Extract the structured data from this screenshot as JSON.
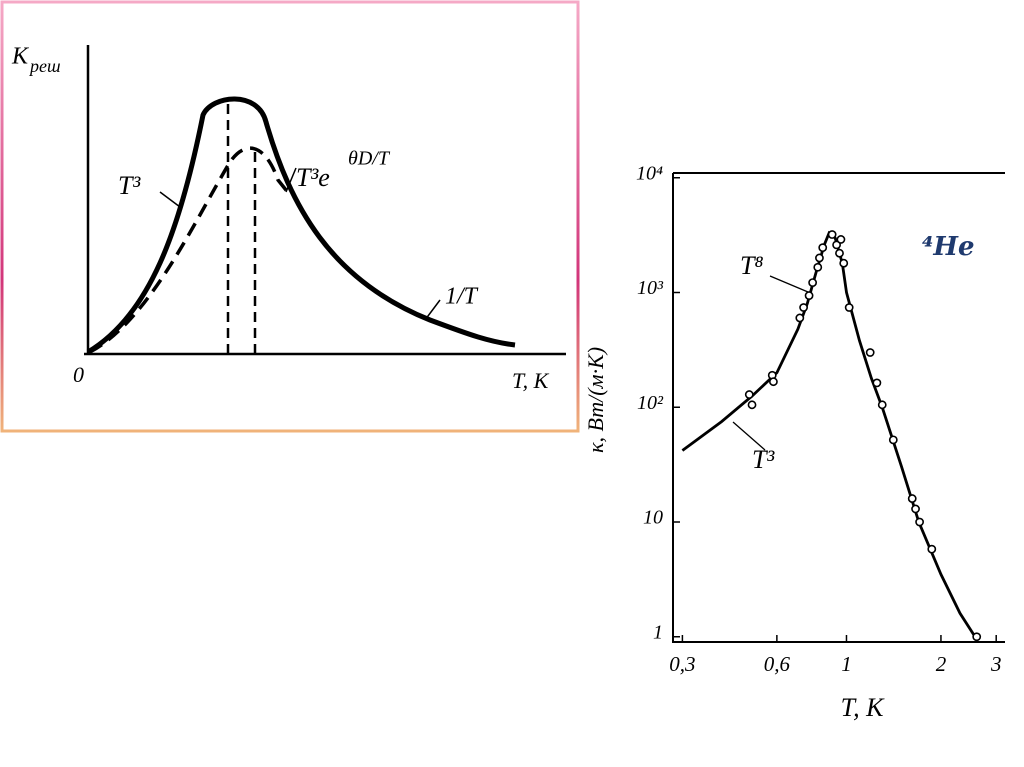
{
  "schematic": {
    "y_label": "K",
    "y_label_sub": "реш",
    "x_label": "T, K",
    "origin": "0",
    "label_rise": "T³",
    "label_peak_base": "T³e",
    "label_peak_exp": "θD/T",
    "label_fall": "1/T"
  },
  "chart_data": {
    "type": "line",
    "x_label": "T, K",
    "y_label": "κ, Вт/(м·К)",
    "xlog": true,
    "ylog": true,
    "xlim": [
      0.28,
      3.2
    ],
    "ylim": [
      0.9,
      11000
    ],
    "xticks": [
      {
        "value": 0.3,
        "label": "0,3"
      },
      {
        "value": 0.6,
        "label": "0,6"
      },
      1,
      2,
      3
    ],
    "yticks": [
      1,
      10,
      {
        "value": 100,
        "label": "10²"
      },
      {
        "value": 1000,
        "label": "10³"
      },
      {
        "value": 10000,
        "label": "10⁴"
      }
    ],
    "annotations": [
      "T⁸",
      "T³",
      "⁴He"
    ],
    "annotation_colors": [
      "#000000",
      "#000000",
      "#1f3a6e"
    ],
    "series": [
      {
        "style": "line",
        "color": "#000000",
        "x": [
          0.3,
          0.4,
          0.5,
          0.6,
          0.7,
          0.75,
          0.8,
          0.85,
          0.88,
          0.92,
          0.97,
          1.0,
          1.1,
          1.2,
          1.3,
          1.5,
          1.7,
          2.0,
          2.3,
          2.6
        ],
        "values": [
          42,
          75,
          125,
          200,
          480,
          800,
          1500,
          2600,
          3300,
          3000,
          1800,
          1000,
          380,
          180,
          100,
          30,
          10,
          3.5,
          1.6,
          0.95
        ]
      },
      {
        "style": "markers",
        "color": "#000000",
        "x": [
          0.49,
          0.5,
          0.58,
          0.585,
          0.71,
          0.73,
          0.76,
          0.78,
          0.81,
          0.82,
          0.84,
          0.9,
          0.93,
          0.95,
          0.96,
          0.98,
          1.02,
          1.19,
          1.25,
          1.3,
          1.41,
          1.62,
          1.66,
          1.71,
          1.87,
          2.6
        ],
        "values": [
          129,
          105,
          190,
          167,
          600,
          740,
          940,
          1220,
          1660,
          2000,
          2460,
          3200,
          2600,
          2200,
          2900,
          1800,
          740,
          300,
          163,
          105,
          52,
          16,
          13,
          10,
          5.8,
          1
        ]
      }
    ]
  }
}
